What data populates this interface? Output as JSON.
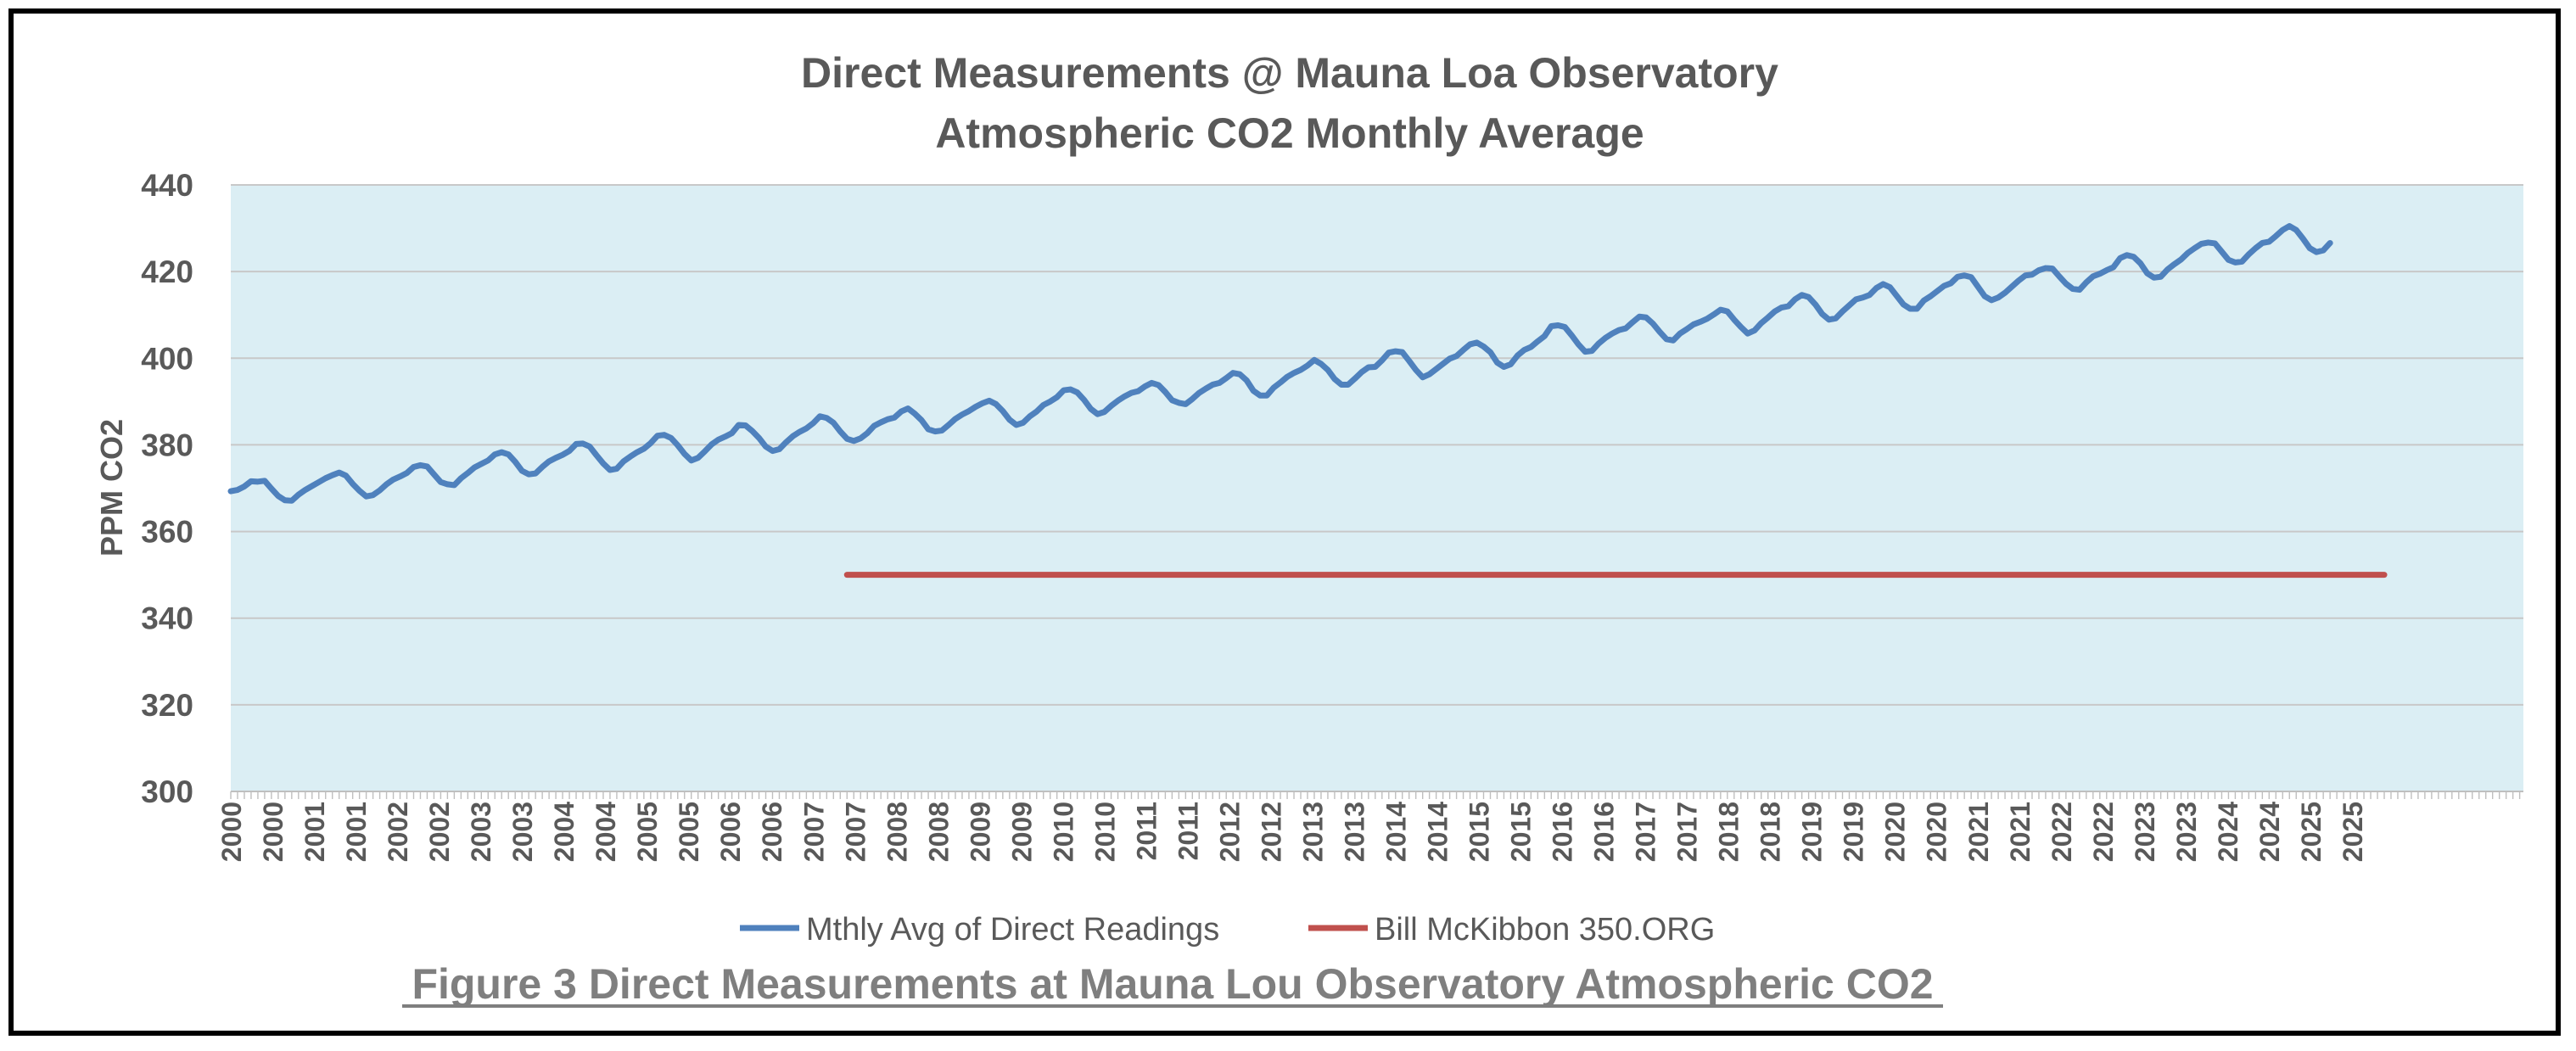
{
  "chart_data": {
    "type": "line",
    "title": "Direct Measurements @ Mauna Loa Observatory",
    "subtitle": "Atmospheric CO2 Monthly Average",
    "ylabel": "PPM CO2",
    "xlabel": "",
    "ylim": [
      300,
      440
    ],
    "yticks": [
      300,
      320,
      340,
      360,
      380,
      400,
      420,
      440
    ],
    "x_range_months": [
      0,
      318
    ],
    "x_tick_labels": [
      "2000",
      "2000",
      "2001",
      "2001",
      "2002",
      "2002",
      "2003",
      "2003",
      "2004",
      "2004",
      "2005",
      "2005",
      "2006",
      "2006",
      "2007",
      "2007",
      "2008",
      "2008",
      "2009",
      "2009",
      "2010",
      "2010",
      "2011",
      "2011",
      "2012",
      "2012",
      "2013",
      "2013",
      "2014",
      "2014",
      "2015",
      "2015",
      "2016",
      "2016",
      "2017",
      "2017",
      "2018",
      "2018",
      "2019",
      "2019",
      "2020",
      "2020",
      "2021",
      "2021",
      "2022",
      "2022",
      "2023",
      "2023",
      "2024",
      "2024",
      "2025",
      "2025"
    ],
    "grid": true,
    "legend_position": "bottom-center",
    "series": [
      {
        "name": "Mthly Avg of Direct Readings",
        "color": "#4f81bd",
        "start_month": 0,
        "values": [
          369.3,
          369.6,
          370.4,
          371.6,
          371.5,
          371.7,
          369.9,
          368.2,
          367.2,
          367.1,
          368.5,
          369.6,
          370.5,
          371.4,
          372.3,
          373.0,
          373.6,
          372.9,
          371.0,
          369.4,
          368.1,
          368.4,
          369.5,
          370.9,
          372.0,
          372.7,
          373.5,
          374.9,
          375.3,
          375.0,
          373.2,
          371.4,
          370.9,
          370.7,
          372.3,
          373.5,
          374.8,
          375.6,
          376.4,
          377.8,
          378.3,
          377.8,
          376.1,
          374.0,
          373.2,
          373.4,
          374.9,
          376.2,
          377.0,
          377.7,
          378.6,
          380.2,
          380.3,
          379.6,
          377.6,
          375.7,
          374.2,
          374.5,
          376.2,
          377.3,
          378.3,
          379.1,
          380.4,
          382.1,
          382.3,
          381.6,
          379.9,
          377.9,
          376.4,
          377.0,
          378.5,
          380.1,
          381.2,
          381.9,
          382.7,
          384.6,
          384.5,
          383.2,
          381.6,
          379.6,
          378.6,
          379.0,
          380.6,
          382.0,
          383.0,
          383.8,
          385.0,
          386.6,
          386.2,
          385.1,
          383.1,
          381.4,
          380.9,
          381.5,
          382.7,
          384.4,
          385.2,
          385.9,
          386.3,
          387.7,
          388.4,
          387.2,
          385.7,
          383.6,
          383.1,
          383.3,
          384.6,
          386.0,
          387.0,
          387.8,
          388.8,
          389.6,
          390.2,
          389.4,
          387.8,
          385.8,
          384.6,
          385.1,
          386.6,
          387.7,
          389.2,
          390.0,
          391.0,
          392.6,
          392.8,
          392.1,
          390.4,
          388.3,
          387.1,
          387.6,
          389.0,
          390.2,
          391.2,
          392.0,
          392.4,
          393.5,
          394.3,
          393.8,
          392.2,
          390.3,
          389.7,
          389.4,
          390.6,
          392.0,
          393.0,
          393.9,
          394.3,
          395.4,
          396.6,
          396.3,
          394.9,
          392.5,
          391.4,
          391.4,
          393.2,
          394.4,
          395.7,
          396.6,
          397.3,
          398.3,
          399.6,
          398.7,
          397.3,
          395.2,
          393.9,
          393.9,
          395.3,
          396.8,
          397.9,
          398.0,
          399.5,
          401.3,
          401.6,
          401.4,
          399.4,
          397.3,
          395.6,
          396.3,
          397.5,
          398.7,
          399.9,
          400.5,
          401.9,
          403.2,
          403.6,
          402.7,
          401.4,
          399.0,
          398.0,
          398.6,
          400.6,
          401.9,
          402.6,
          403.9,
          405.1,
          407.4,
          407.6,
          407.2,
          405.3,
          403.2,
          401.5,
          401.7,
          403.4,
          404.7,
          405.7,
          406.5,
          406.9,
          408.3,
          409.6,
          409.4,
          408.0,
          406.1,
          404.4,
          404.1,
          405.7,
          406.7,
          407.8,
          408.4,
          409.1,
          410.1,
          411.2,
          410.8,
          408.9,
          407.2,
          405.7,
          406.4,
          408.1,
          409.4,
          410.8,
          411.7,
          412.0,
          413.6,
          414.6,
          414.1,
          412.4,
          410.2,
          408.9,
          409.2,
          410.8,
          412.2,
          413.6,
          414.0,
          414.6,
          416.2,
          417.1,
          416.4,
          414.4,
          412.4,
          411.4,
          411.4,
          413.3,
          414.3,
          415.5,
          416.7,
          417.3,
          418.8,
          419.1,
          418.7,
          416.5,
          414.3,
          413.4,
          414.0,
          415.1,
          416.5,
          417.9,
          419.1,
          419.3,
          420.3,
          420.8,
          420.7,
          418.9,
          417.2,
          416.0,
          415.8,
          417.5,
          418.9,
          419.5,
          420.3,
          421.0,
          423.1,
          423.8,
          423.4,
          421.9,
          419.6,
          418.6,
          418.8,
          420.5,
          421.7,
          422.8,
          424.3,
          425.4,
          426.4,
          426.7,
          426.5,
          424.6,
          422.7,
          422.1,
          422.3,
          424.0,
          425.4,
          426.6,
          426.9,
          428.2,
          429.6,
          430.5,
          429.6,
          427.6,
          425.4,
          424.5,
          424.9,
          426.6
        ]
      },
      {
        "name": "Bill McKibbon 350.ORG",
        "color": "#c0504d",
        "start_month": 91,
        "end_month": 318,
        "values": [
          350,
          350
        ]
      }
    ],
    "caption": "Figure 3 Direct Measurements at Mauna Lou Observatory Atmospheric CO2"
  }
}
